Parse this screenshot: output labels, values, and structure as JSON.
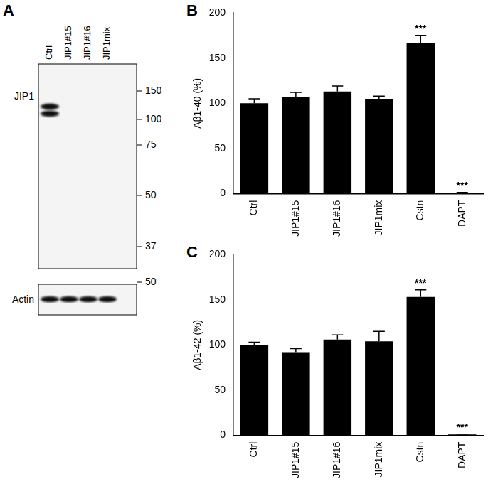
{
  "blot": {
    "panel": "A",
    "lanes": [
      "Ctrl",
      "JIP1#15",
      "JIP1#16",
      "JIP1mix"
    ],
    "blots": [
      {
        "label": "JIP1",
        "markers": [
          150,
          100,
          75,
          50,
          37
        ],
        "band_lanes": [
          "Ctrl"
        ]
      },
      {
        "label": "Actin",
        "markers": [
          50
        ],
        "band_lanes": [
          "Ctrl",
          "JIP1#15",
          "JIP1#16",
          "JIP1mix"
        ]
      }
    ]
  },
  "chart_data": [
    {
      "panel": "B",
      "type": "bar",
      "categories": [
        "Ctrl",
        "JIP1#15",
        "JIP1#16",
        "JIP1mix",
        "Cstn",
        "DAPT"
      ],
      "values": [
        100,
        107,
        113,
        105,
        167,
        1
      ],
      "errors": [
        5,
        5,
        6,
        3,
        8,
        0.5
      ],
      "color": "#000000",
      "y_label": "Aβ1-40 (%)",
      "ylim": [
        0,
        200
      ],
      "yticks": [
        0,
        50,
        100,
        150,
        200
      ],
      "grid": false,
      "annotations": [
        {
          "category": "Cstn",
          "text": "***"
        },
        {
          "category": "DAPT",
          "text": "***"
        }
      ]
    },
    {
      "panel": "C",
      "type": "bar",
      "categories": [
        "Ctrl",
        "JIP1#15",
        "JIP1#16",
        "JIP1mix",
        "Cstn",
        "DAPT"
      ],
      "values": [
        100,
        92,
        106,
        104,
        153,
        1
      ],
      "errors": [
        3,
        4,
        5,
        11,
        8,
        0.5
      ],
      "color": "#000000",
      "y_label": "Aβ1-42 (%)",
      "ylim": [
        0,
        200
      ],
      "yticks": [
        0,
        50,
        100,
        150,
        200
      ],
      "grid": false,
      "annotations": [
        {
          "category": "Cstn",
          "text": "***"
        },
        {
          "category": "DAPT",
          "text": "***"
        }
      ]
    }
  ]
}
